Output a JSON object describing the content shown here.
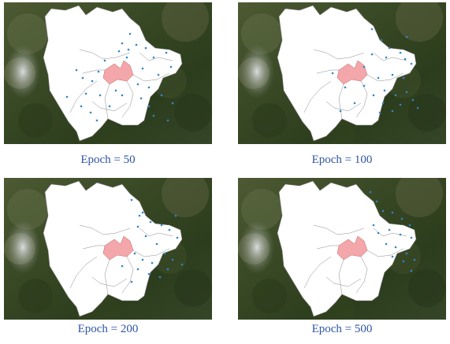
{
  "panels": [
    {
      "caption": "Epoch = 50"
    },
    {
      "caption": "Epoch = 100"
    },
    {
      "caption": "Epoch = 200"
    },
    {
      "caption": "Epoch = 500"
    }
  ],
  "colors": {
    "region_fill": "#ffffff",
    "highlight_fill": "#f4a7aa",
    "point_color": "#2f86c8",
    "caption_color": "#2f55a4"
  }
}
